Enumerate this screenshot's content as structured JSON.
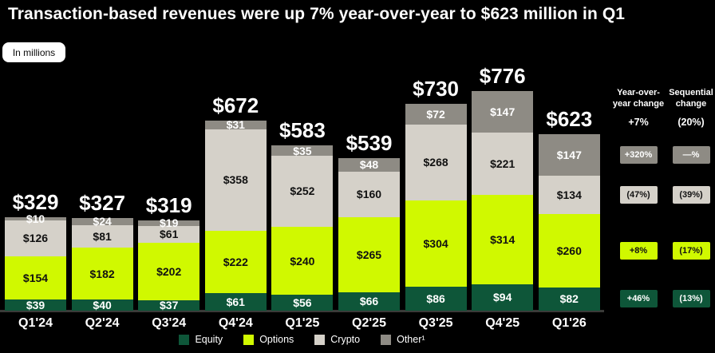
{
  "title": "Transaction-based revenues were up 7% year-over-year to $623 million in Q1",
  "units_label": "In millions",
  "colors": {
    "background": "#000000",
    "equity": "#0e5639",
    "options": "#d0f900",
    "crypto": "#d5d1c9",
    "other": "#8e8b84",
    "baseline": "#3a3a38",
    "text_light": "#ffffff",
    "text_dark": "#111111"
  },
  "chart_data": {
    "type": "bar",
    "stacked": true,
    "title": "Transaction-based revenues by quarter, in millions of dollars",
    "categories": [
      "Q1'24",
      "Q2'24",
      "Q3'24",
      "Q4'24",
      "Q1'25",
      "Q2'25",
      "Q3'25",
      "Q4'25",
      "Q1'26"
    ],
    "series": [
      {
        "name": "Equity",
        "color_key": "equity",
        "label_tone": "light",
        "values": [
          39,
          40,
          37,
          61,
          56,
          66,
          86,
          94,
          82
        ]
      },
      {
        "name": "Options",
        "color_key": "options",
        "label_tone": "dark",
        "values": [
          154,
          182,
          202,
          222,
          240,
          265,
          304,
          314,
          260
        ]
      },
      {
        "name": "Crypto",
        "color_key": "crypto",
        "label_tone": "dark",
        "values": [
          126,
          81,
          61,
          358,
          252,
          160,
          268,
          221,
          134
        ]
      },
      {
        "name": "Other¹",
        "color_key": "other",
        "label_tone": "light",
        "values": [
          10,
          24,
          19,
          31,
          35,
          48,
          72,
          147,
          147
        ]
      }
    ],
    "totals": [
      329,
      327,
      319,
      672,
      583,
      539,
      730,
      776,
      623
    ],
    "value_prefix": "$",
    "ylim": [
      0,
      800
    ],
    "grid": false,
    "legend_position": "bottom"
  },
  "side_panel": {
    "columns": [
      {
        "header_lines": [
          "Year-over-",
          "year change"
        ],
        "total_value": "+7%"
      },
      {
        "header_lines": [
          "Sequential",
          "change"
        ],
        "total_value": "(20%)"
      }
    ],
    "change_rows": [
      {
        "series": "Other¹",
        "yoy": "+320%",
        "sequential": "—%"
      },
      {
        "series": "Crypto",
        "yoy": "(47%)",
        "sequential": "(39%)"
      },
      {
        "series": "Options",
        "yoy": "+8%",
        "sequential": "(17%)"
      },
      {
        "series": "Equity",
        "yoy": "+46%",
        "sequential": "(13%)"
      }
    ]
  }
}
